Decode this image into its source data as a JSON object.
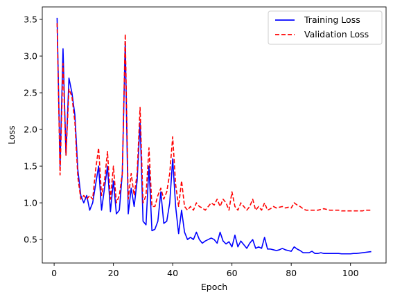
{
  "chart_data": {
    "type": "line",
    "title": "",
    "xlabel": "Epoch",
    "ylabel": "Loss",
    "xlim": [
      -4,
      112
    ],
    "ylim": [
      0.18,
      3.67
    ],
    "xticks": [
      0,
      20,
      40,
      60,
      80,
      100
    ],
    "yticks": [
      0.5,
      1.0,
      1.5,
      2.0,
      2.5,
      3.0,
      3.5
    ],
    "ytick_labels": [
      "0.5",
      "1.0",
      "1.5",
      "2.0",
      "2.5",
      "3.0",
      "3.5"
    ],
    "grid": false,
    "legend_position": "top-right",
    "x": [
      1,
      2,
      3,
      4,
      5,
      6,
      7,
      8,
      9,
      10,
      11,
      12,
      13,
      14,
      15,
      16,
      17,
      18,
      19,
      20,
      21,
      22,
      23,
      24,
      25,
      26,
      27,
      28,
      29,
      30,
      31,
      32,
      33,
      34,
      35,
      36,
      37,
      38,
      39,
      40,
      41,
      42,
      43,
      44,
      45,
      46,
      47,
      48,
      49,
      50,
      51,
      52,
      53,
      54,
      55,
      56,
      57,
      58,
      59,
      60,
      61,
      62,
      63,
      64,
      65,
      66,
      67,
      68,
      69,
      70,
      71,
      72,
      73,
      74,
      75,
      76,
      77,
      78,
      79,
      80,
      81,
      82,
      83,
      84,
      85,
      86,
      87,
      88,
      89,
      90,
      91,
      92,
      93,
      94,
      95,
      96,
      97,
      98,
      99,
      100,
      101,
      102,
      103,
      104,
      105,
      106,
      107
    ],
    "series": [
      {
        "name": "Training Loss",
        "color": "#0000ff",
        "style": "solid",
        "values": [
          3.52,
          1.5,
          3.1,
          1.65,
          2.7,
          2.5,
          2.2,
          1.45,
          1.1,
          1.0,
          1.1,
          0.9,
          1.0,
          1.25,
          1.5,
          0.9,
          1.2,
          1.5,
          0.88,
          1.3,
          0.85,
          0.9,
          1.4,
          3.2,
          0.85,
          1.2,
          0.95,
          1.3,
          2.1,
          0.75,
          0.7,
          1.5,
          0.62,
          0.64,
          0.75,
          1.15,
          0.72,
          0.75,
          1.0,
          1.6,
          0.95,
          0.58,
          0.9,
          0.6,
          0.5,
          0.53,
          0.5,
          0.6,
          0.5,
          0.45,
          0.48,
          0.5,
          0.52,
          0.5,
          0.45,
          0.6,
          0.48,
          0.44,
          0.47,
          0.4,
          0.56,
          0.4,
          0.48,
          0.43,
          0.38,
          0.45,
          0.5,
          0.38,
          0.4,
          0.38,
          0.53,
          0.37,
          0.37,
          0.36,
          0.35,
          0.36,
          0.38,
          0.36,
          0.35,
          0.34,
          0.4,
          0.37,
          0.35,
          0.32,
          0.32,
          0.32,
          0.34,
          0.31,
          0.31,
          0.32,
          0.31,
          0.31,
          0.31,
          0.31,
          0.31,
          0.31,
          0.305,
          0.305,
          0.305,
          0.305,
          0.31,
          0.31,
          0.315,
          0.32,
          0.325,
          0.33,
          0.335
        ]
      },
      {
        "name": "Validation Loss",
        "color": "#ff0000",
        "style": "dashed",
        "values": [
          3.45,
          1.38,
          2.9,
          1.65,
          2.55,
          2.45,
          2.1,
          1.35,
          1.05,
          1.1,
          1.05,
          1.1,
          1.05,
          1.45,
          1.75,
          1.1,
          1.3,
          1.7,
          1.05,
          1.5,
          1.0,
          1.1,
          1.4,
          3.3,
          1.05,
          1.4,
          1.1,
          1.4,
          2.3,
          1.0,
          1.1,
          1.75,
          0.95,
          0.95,
          1.1,
          1.2,
          1.05,
          1.15,
          1.4,
          1.9,
          1.25,
          0.95,
          1.3,
          0.95,
          0.9,
          0.95,
          0.9,
          1.0,
          0.95,
          0.93,
          0.9,
          0.95,
          1.0,
          0.97,
          1.05,
          0.95,
          1.05,
          1.0,
          0.9,
          1.15,
          0.95,
          0.9,
          1.0,
          0.95,
          0.9,
          0.95,
          1.05,
          0.9,
          0.95,
          0.9,
          1.0,
          0.9,
          0.92,
          0.95,
          0.93,
          0.94,
          0.95,
          0.93,
          0.94,
          0.93,
          1.0,
          0.97,
          0.95,
          0.92,
          0.9,
          0.9,
          0.9,
          0.9,
          0.9,
          0.91,
          0.92,
          0.91,
          0.9,
          0.9,
          0.9,
          0.9,
          0.89,
          0.89,
          0.89,
          0.89,
          0.89,
          0.89,
          0.89,
          0.89,
          0.9,
          0.9,
          0.9
        ]
      }
    ]
  }
}
